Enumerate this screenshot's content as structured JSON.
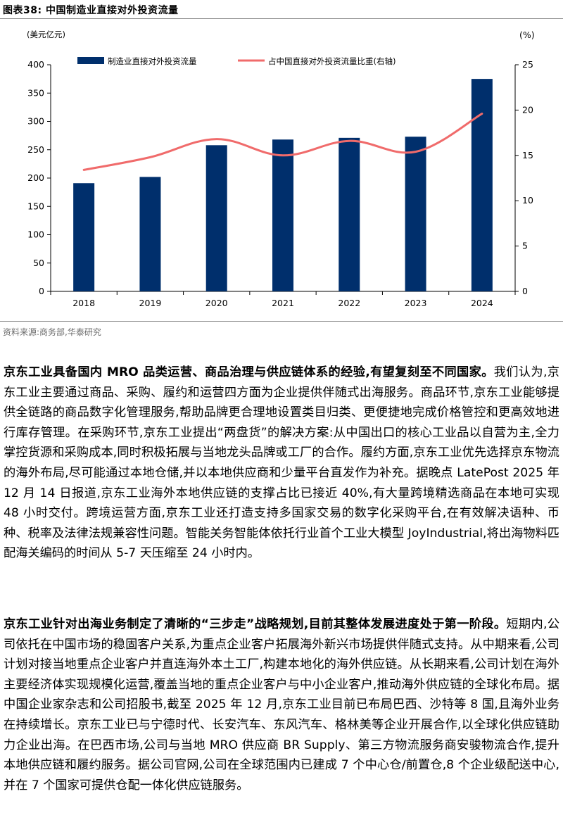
{
  "figure": {
    "title": "图表38:  中国制造业直接对外投资流量",
    "source": "资料来源:商务部,华泰研究"
  },
  "chart_data": {
    "type": "bar",
    "categories": [
      "2018",
      "2019",
      "2020",
      "2021",
      "2022",
      "2023",
      "2024"
    ],
    "left_unit": "(美元亿元)",
    "right_unit": "(%)",
    "left_ylim": [
      0,
      400
    ],
    "left_ticks": [
      "0",
      "50",
      "100",
      "150",
      "200",
      "250",
      "300",
      "350",
      "400"
    ],
    "right_ylim": [
      0,
      25
    ],
    "right_ticks": [
      "0",
      "5",
      "10",
      "15",
      "20",
      "25"
    ],
    "legend_position": "top",
    "series": [
      {
        "name": "制造业直接对外投资流量",
        "type": "bar",
        "axis": "left",
        "color": "#002f6c",
        "values": [
          191,
          202,
          258,
          268,
          271,
          273,
          375
        ]
      },
      {
        "name": "占中国直接对外投资流量比重(右轴)",
        "type": "line",
        "axis": "right",
        "color": "#f06b6b",
        "values": [
          13.4,
          14.8,
          16.8,
          15.0,
          16.6,
          15.4,
          19.6
        ]
      }
    ]
  },
  "paragraphs": [
    {
      "lead": "京东工业具备国内 MRO 品类运营、商品治理与供应链体系的经验,有望复刻至不同国家。",
      "body": "我们认为,京东工业主要通过商品、采购、履约和运营四方面为企业提供伴随式出海服务。商品环节,京东工业能够提供全链路的商品数字化管理服务,帮助品牌更合理地设置类目归类、更便捷地完成价格管控和更高效地进行库存管理。在采购环节,京东工业提出“两盘货”的解决方案:从中国出口的核心工业品以自营为主,全力掌控货源和采购成本,同时积极拓展与当地龙头品牌或工厂的合作。履约方面,京东工业优先选择京东物流的海外布局,尽可能通过本地仓储,并以本地供应商和少量平台直发作为补充。据晚点 LatePost 2025 年 12 月 14 日报道,京东工业海外本地供应链的支撑占比已接近 40%,有大量跨境精选商品在本地可实现 48 小时交付。跨境运营方面,京东工业还打造支持多国家交易的数字化采购平台,在有效解决语种、币种、税率及法律法规兼容性问题。智能关务智能体依托行业首个工业大模型 JoyIndustrial,将出海物料匹配海关编码的时间从 5-7 天压缩至 24 小时内。"
    },
    {
      "lead": "京东工业针对出海业务制定了清晰的“三步走”战略规划,目前其整体发展进度处于第一阶段。",
      "body": "短期内,公司依托在中国市场的稳固客户关系,为重点企业客户拓展海外新兴市场提供伴随式支持。从中期来看,公司计划对接当地重点企业客户并直连海外本土工厂,构建本地化的海外供应链。从长期来看,公司计划在海外主要经济体实现规模化运营,覆盖当地的重点企业客户与中小企业客户,推动海外供应链的全球化布局。据中国企业家杂志和公司招股书,截至 2025 年 12 月,京东工业目前已布局巴西、沙特等 8 国,且海外业务在持续增长。京东工业已与宁德时代、长安汽车、东风汽车、格林美等企业开展合作,以全球化供应链助力企业出海。在巴西市场,公司与当地 MRO 供应商 BR Supply、第三方物流服务商安骏物流合作,提升本地供应链和履约服务。据公司官网,公司在全球范围内已建成 7 个中心仓/前置仓,8 个企业级配送中心,并在 7 个国家可提供仓配一体化供应链服务。"
    }
  ]
}
